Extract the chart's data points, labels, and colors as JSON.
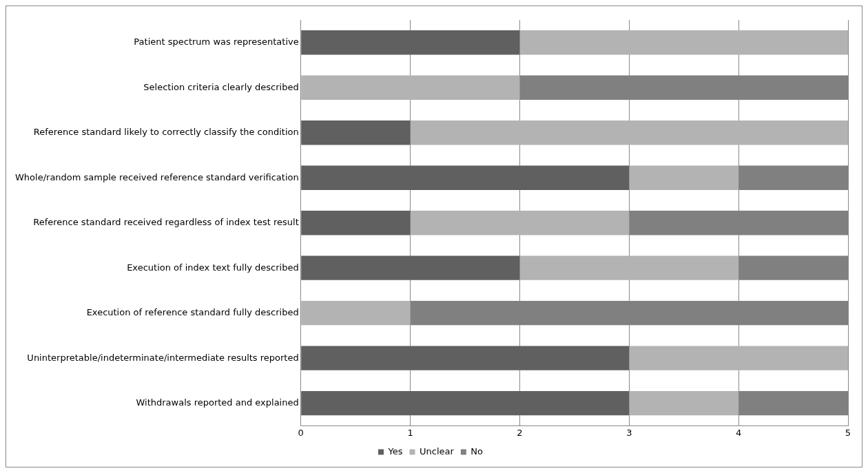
{
  "chart_data": {
    "type": "bar",
    "orientation": "horizontal",
    "stacked": true,
    "categories": [
      "Patient spectrum was representative",
      "Selection criteria clearly described",
      "Reference standard likely to correctly classify the condition",
      "Whole/random sample received reference standard verification",
      "Reference standard received regardless of index test result",
      "Execution of index text fully described",
      "Execution of reference standard fully described",
      "Uninterpretable/indeterminate/intermediate results reported",
      "Withdrawals reported and explained"
    ],
    "series": [
      {
        "name": "Yes",
        "color": "#606060",
        "values": [
          2,
          0,
          1,
          3,
          1,
          2,
          0,
          3,
          3
        ]
      },
      {
        "name": "Unclear",
        "color": "#b3b3b3",
        "values": [
          3,
          2,
          4,
          1,
          2,
          2,
          1,
          2,
          1
        ]
      },
      {
        "name": "No",
        "color": "#808080",
        "values": [
          0,
          3,
          0,
          1,
          2,
          1,
          4,
          0,
          1
        ]
      }
    ],
    "xlim": [
      0,
      5
    ],
    "xticks": [
      0,
      1,
      2,
      3,
      4,
      5
    ],
    "grid": "x",
    "legend": "bottom"
  }
}
